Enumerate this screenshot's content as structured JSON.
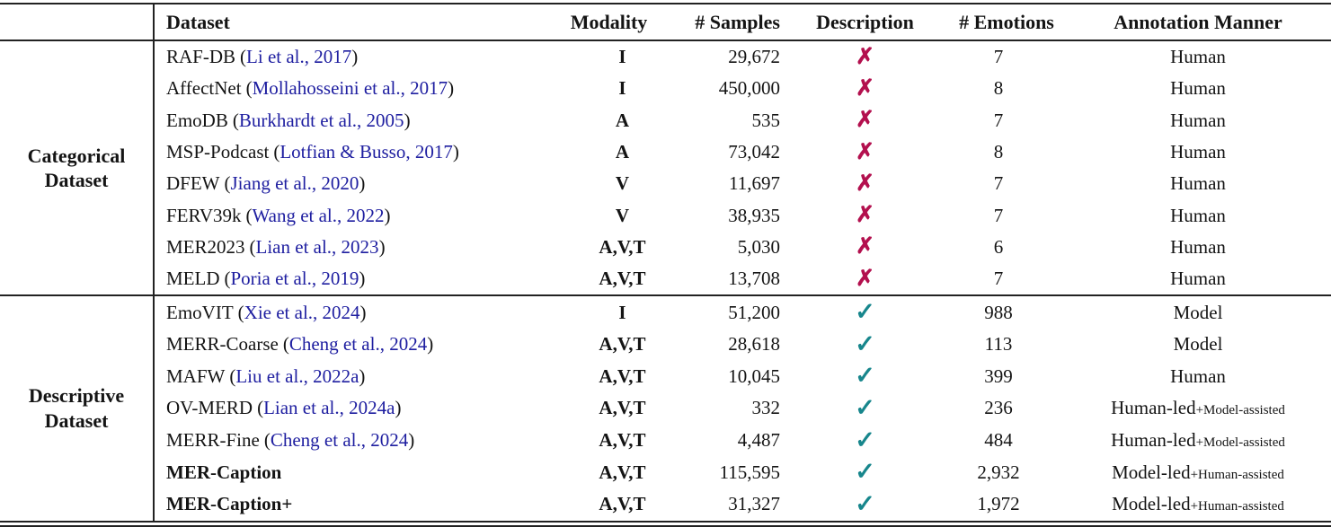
{
  "colors": {
    "text": "#141414",
    "rule": "#222222",
    "citation": "#1e1ea0",
    "cross": "#b3104e",
    "check": "#17868c"
  },
  "icons": {
    "check_glyph": "✓",
    "cross_glyph": "✗"
  },
  "table": {
    "paren_open": "(",
    "paren_close": ")",
    "headers": [
      "Dataset",
      "Modality",
      "# Samples",
      "Description",
      "# Emotions",
      "Annotation Manner"
    ],
    "groups": [
      {
        "label": "Categorical Dataset",
        "rows": [
          {
            "name": "RAF-DB",
            "citation": "Li et al., 2017",
            "bold": false,
            "modality": "I",
            "samples": "29,672",
            "description": false,
            "emotions": "7",
            "annotation": "Human",
            "annotation_suffix": ""
          },
          {
            "name": "AffectNet",
            "citation": "Mollahosseini et al., 2017",
            "bold": false,
            "modality": "I",
            "samples": "450,000",
            "description": false,
            "emotions": "8",
            "annotation": "Human",
            "annotation_suffix": ""
          },
          {
            "name": "EmoDB",
            "citation": "Burkhardt et al., 2005",
            "bold": false,
            "modality": "A",
            "samples": "535",
            "description": false,
            "emotions": "7",
            "annotation": "Human",
            "annotation_suffix": ""
          },
          {
            "name": "MSP-Podcast",
            "citation": "Lotfian & Busso, 2017",
            "bold": false,
            "modality": "A",
            "samples": "73,042",
            "description": false,
            "emotions": "8",
            "annotation": "Human",
            "annotation_suffix": ""
          },
          {
            "name": "DFEW",
            "citation": "Jiang et al., 2020",
            "bold": false,
            "modality": "V",
            "samples": "11,697",
            "description": false,
            "emotions": "7",
            "annotation": "Human",
            "annotation_suffix": ""
          },
          {
            "name": "FERV39k",
            "citation": "Wang et al., 2022",
            "bold": false,
            "modality": "V",
            "samples": "38,935",
            "description": false,
            "emotions": "7",
            "annotation": "Human",
            "annotation_suffix": ""
          },
          {
            "name": "MER2023",
            "citation": "Lian et al., 2023",
            "bold": false,
            "modality": "A,V,T",
            "samples": "5,030",
            "description": false,
            "emotions": "6",
            "annotation": "Human",
            "annotation_suffix": ""
          },
          {
            "name": "MELD",
            "citation": "Poria et al., 2019",
            "bold": false,
            "modality": "A,V,T",
            "samples": "13,708",
            "description": false,
            "emotions": "7",
            "annotation": "Human",
            "annotation_suffix": ""
          }
        ]
      },
      {
        "label": "Descriptive Dataset",
        "rows": [
          {
            "name": "EmoVIT",
            "citation": "Xie et al., 2024",
            "bold": false,
            "modality": "I",
            "samples": "51,200",
            "description": true,
            "emotions": "988",
            "annotation": "Model",
            "annotation_suffix": ""
          },
          {
            "name": "MERR-Coarse",
            "citation": "Cheng et al., 2024",
            "bold": false,
            "modality": "A,V,T",
            "samples": "28,618",
            "description": true,
            "emotions": "113",
            "annotation": "Model",
            "annotation_suffix": ""
          },
          {
            "name": "MAFW",
            "citation": "Liu et al., 2022a",
            "bold": false,
            "modality": "A,V,T",
            "samples": "10,045",
            "description": true,
            "emotions": "399",
            "annotation": "Human",
            "annotation_suffix": ""
          },
          {
            "name": "OV-MERD",
            "citation": "Lian et al., 2024a",
            "bold": false,
            "modality": "A,V,T",
            "samples": "332",
            "description": true,
            "emotions": "236",
            "annotation": "Human-led",
            "annotation_suffix": "+Model-assisted"
          },
          {
            "name": "MERR-Fine",
            "citation": "Cheng et al., 2024",
            "bold": false,
            "modality": "A,V,T",
            "samples": "4,487",
            "description": true,
            "emotions": "484",
            "annotation": "Human-led",
            "annotation_suffix": "+Model-assisted"
          },
          {
            "name": "MER-Caption",
            "citation": "",
            "bold": true,
            "modality": "A,V,T",
            "samples": "115,595",
            "description": true,
            "emotions": "2,932",
            "annotation": "Model-led",
            "annotation_suffix": "+Human-assisted"
          },
          {
            "name": "MER-Caption+",
            "citation": "",
            "bold": true,
            "modality": "A,V,T",
            "samples": "31,327",
            "description": true,
            "emotions": "1,972",
            "annotation": "Model-led",
            "annotation_suffix": "+Human-assisted"
          }
        ]
      }
    ]
  }
}
